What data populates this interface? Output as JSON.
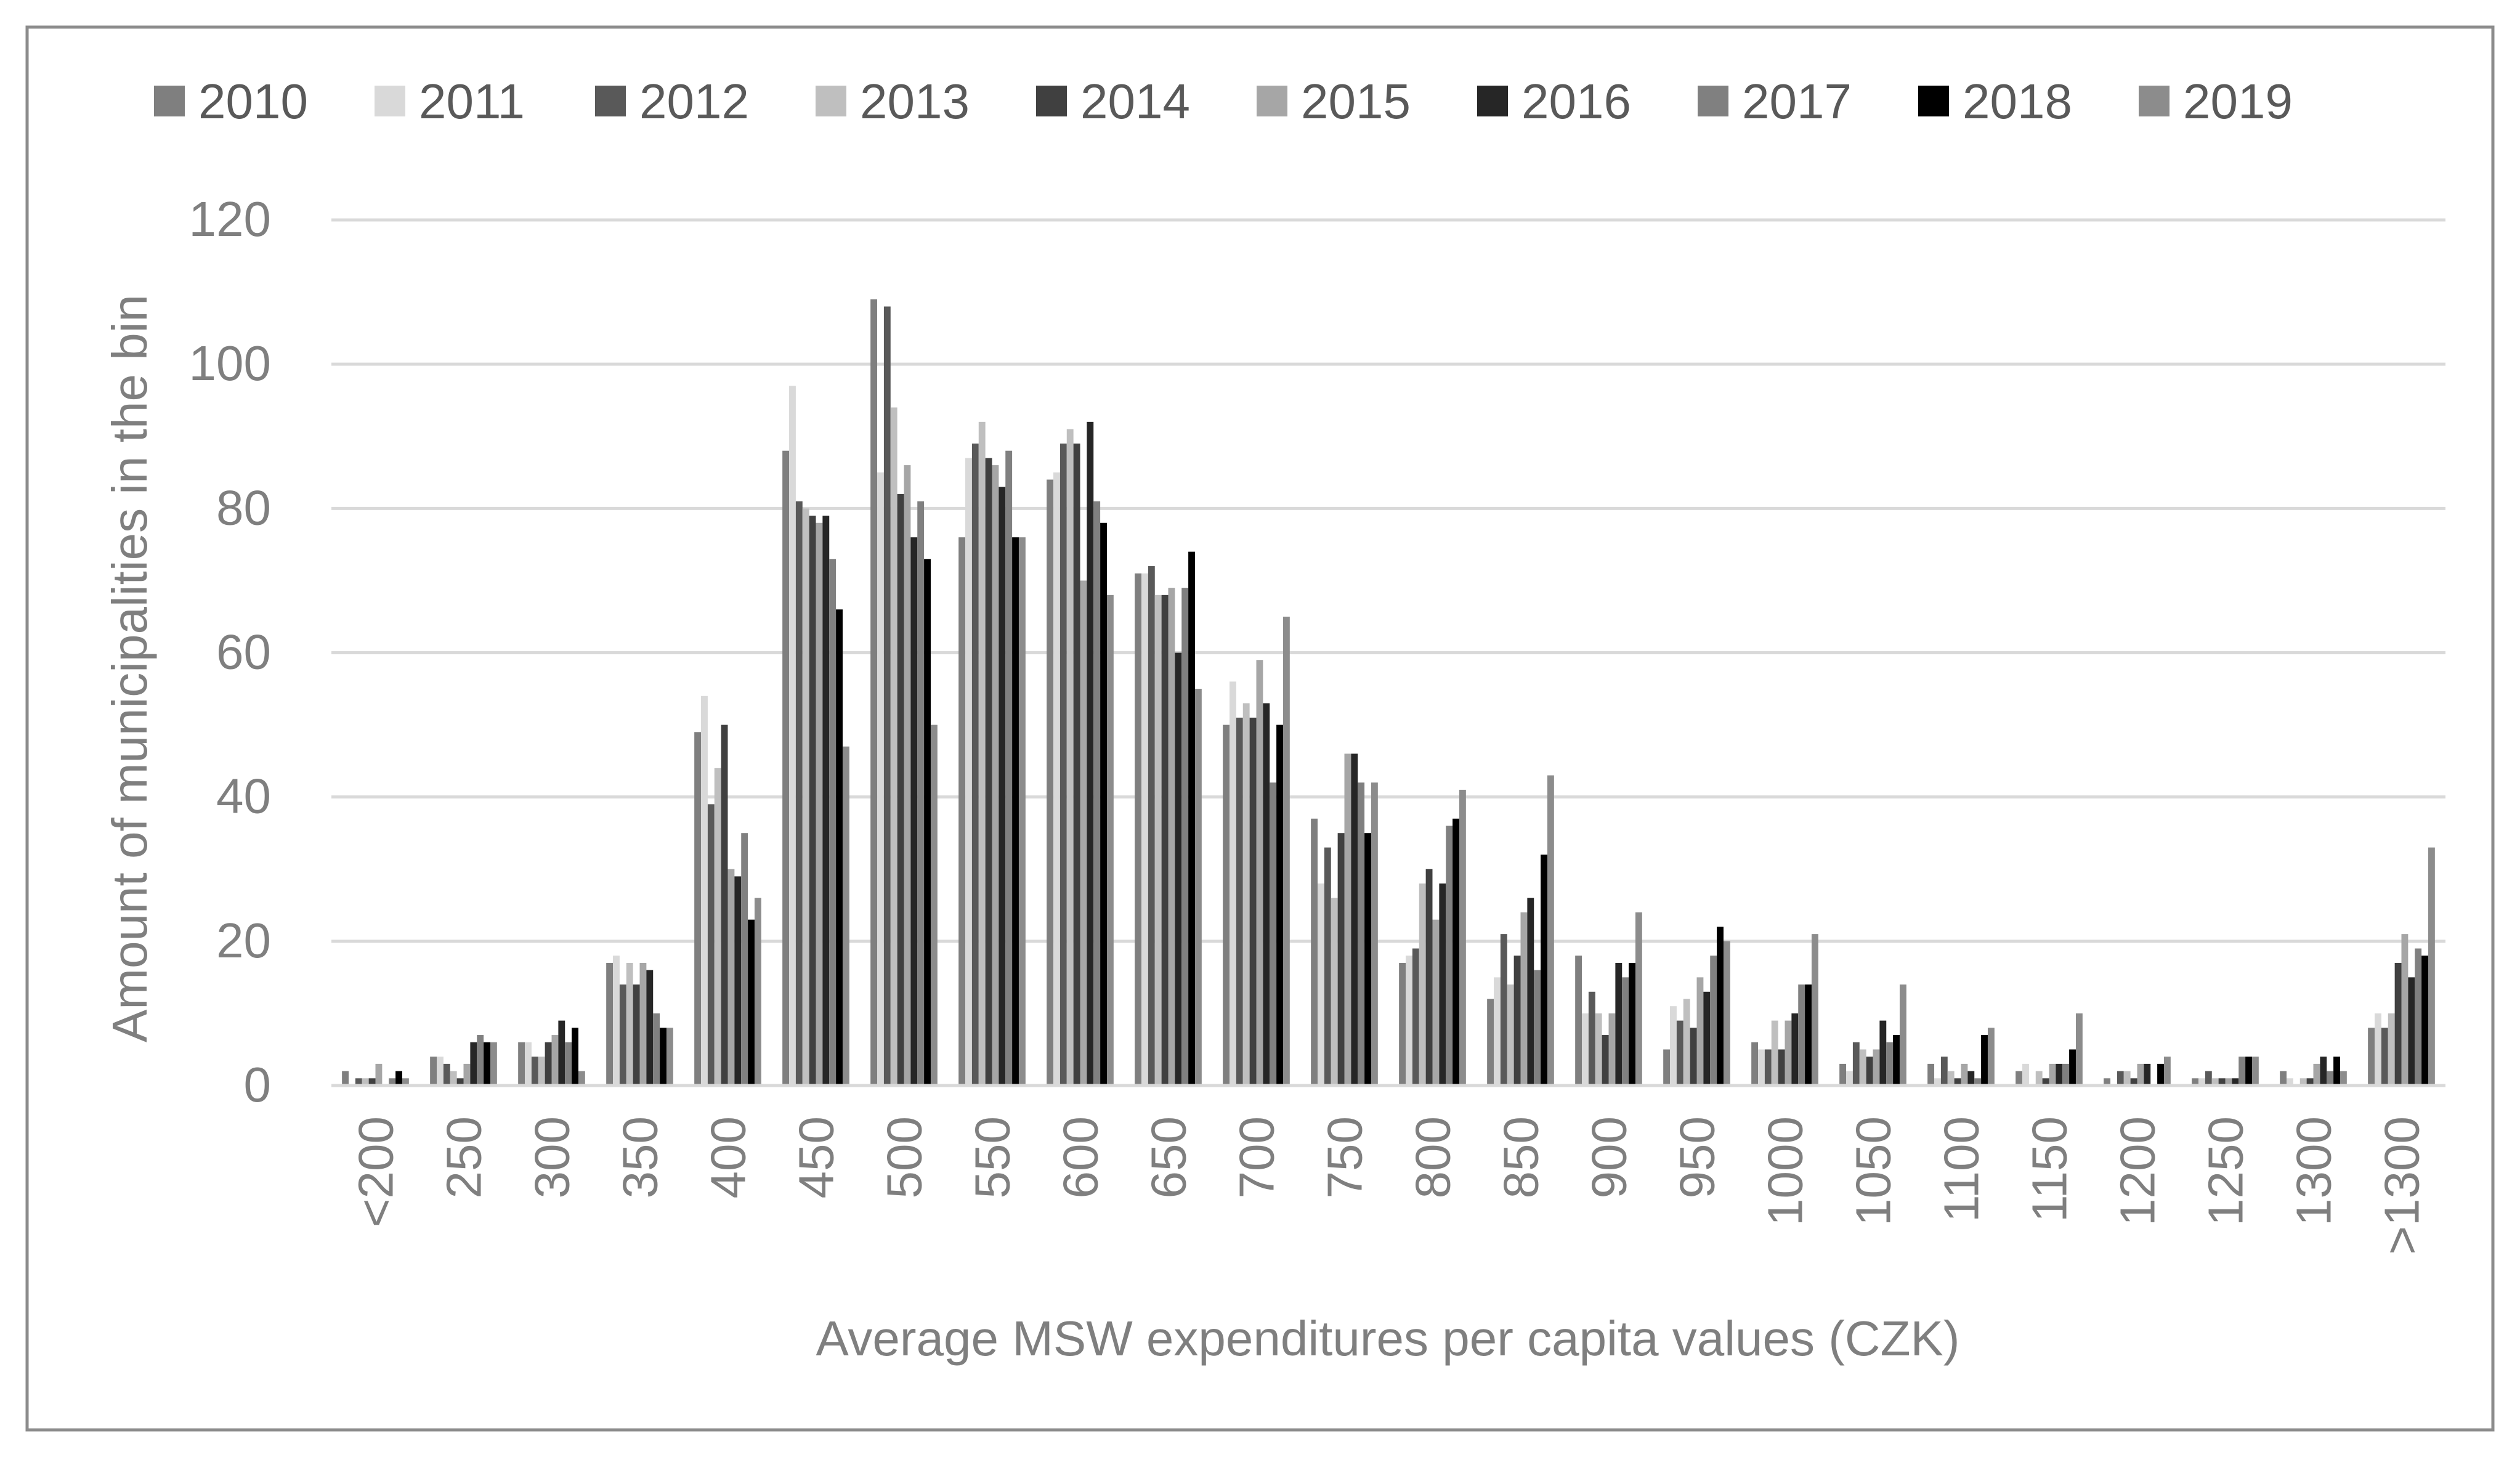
{
  "chart_data": {
    "type": "bar",
    "title": "",
    "xlabel": "Average MSW expenditures per capita values (CZK)",
    "ylabel": "Amount of municipalities in the bin",
    "ylim": [
      0,
      120
    ],
    "yticks": [
      0,
      20,
      40,
      60,
      80,
      100,
      120
    ],
    "grid": true,
    "legend_position": "top",
    "categories": [
      "<200",
      "250",
      "300",
      "350",
      "400",
      "450",
      "500",
      "550",
      "600",
      "650",
      "700",
      "750",
      "800",
      "850",
      "900",
      "950",
      "1000",
      "1050",
      "1100",
      "1150",
      "1200",
      "1250",
      "1300",
      ">1300"
    ],
    "series": [
      {
        "name": "2010",
        "color": "#7f7f7f",
        "values": [
          2,
          4,
          6,
          17,
          49,
          88,
          109,
          76,
          84,
          71,
          50,
          37,
          17,
          12,
          18,
          5,
          6,
          3,
          3,
          2,
          1,
          1,
          2,
          8
        ]
      },
      {
        "name": "2011",
        "color": "#d9d9d9",
        "values": [
          0,
          4,
          6,
          18,
          54,
          97,
          85,
          87,
          85,
          71,
          56,
          28,
          18,
          15,
          10,
          11,
          5,
          2,
          1,
          3,
          0,
          1,
          1,
          10
        ]
      },
      {
        "name": "2012",
        "color": "#595959",
        "values": [
          1,
          3,
          4,
          14,
          39,
          81,
          108,
          89,
          89,
          72,
          51,
          33,
          19,
          21,
          13,
          9,
          5,
          6,
          4,
          0,
          2,
          2,
          0,
          8
        ]
      },
      {
        "name": "2013",
        "color": "#bfbfbf",
        "values": [
          1,
          2,
          4,
          17,
          44,
          80,
          94,
          92,
          91,
          68,
          53,
          26,
          28,
          14,
          10,
          12,
          9,
          5,
          2,
          2,
          2,
          1,
          1,
          10
        ]
      },
      {
        "name": "2014",
        "color": "#404040",
        "values": [
          1,
          1,
          6,
          14,
          50,
          79,
          82,
          87,
          89,
          68,
          51,
          35,
          30,
          18,
          7,
          8,
          5,
          4,
          1,
          1,
          1,
          1,
          1,
          17
        ]
      },
      {
        "name": "2015",
        "color": "#a6a6a6",
        "values": [
          3,
          3,
          7,
          17,
          30,
          78,
          86,
          86,
          70,
          69,
          59,
          46,
          23,
          24,
          10,
          15,
          9,
          5,
          3,
          3,
          3,
          1,
          3,
          21
        ]
      },
      {
        "name": "2016",
        "color": "#262626",
        "values": [
          0,
          6,
          9,
          16,
          29,
          79,
          76,
          83,
          92,
          60,
          53,
          46,
          28,
          26,
          17,
          13,
          10,
          9,
          2,
          3,
          3,
          1,
          4,
          15
        ]
      },
      {
        "name": "2017",
        "color": "#808080",
        "values": [
          1,
          7,
          6,
          10,
          35,
          73,
          81,
          88,
          81,
          69,
          42,
          42,
          36,
          16,
          15,
          18,
          14,
          6,
          1,
          3,
          0,
          4,
          2,
          19
        ]
      },
      {
        "name": "2018",
        "color": "#000000",
        "values": [
          2,
          6,
          8,
          8,
          23,
          66,
          73,
          76,
          78,
          74,
          50,
          35,
          37,
          32,
          17,
          22,
          14,
          7,
          7,
          5,
          3,
          4,
          4,
          18
        ]
      },
      {
        "name": "2019",
        "color": "#8c8c8c",
        "values": [
          1,
          6,
          2,
          8,
          26,
          47,
          50,
          76,
          68,
          55,
          65,
          42,
          41,
          43,
          24,
          20,
          21,
          14,
          8,
          10,
          4,
          4,
          2,
          33
        ]
      }
    ]
  }
}
